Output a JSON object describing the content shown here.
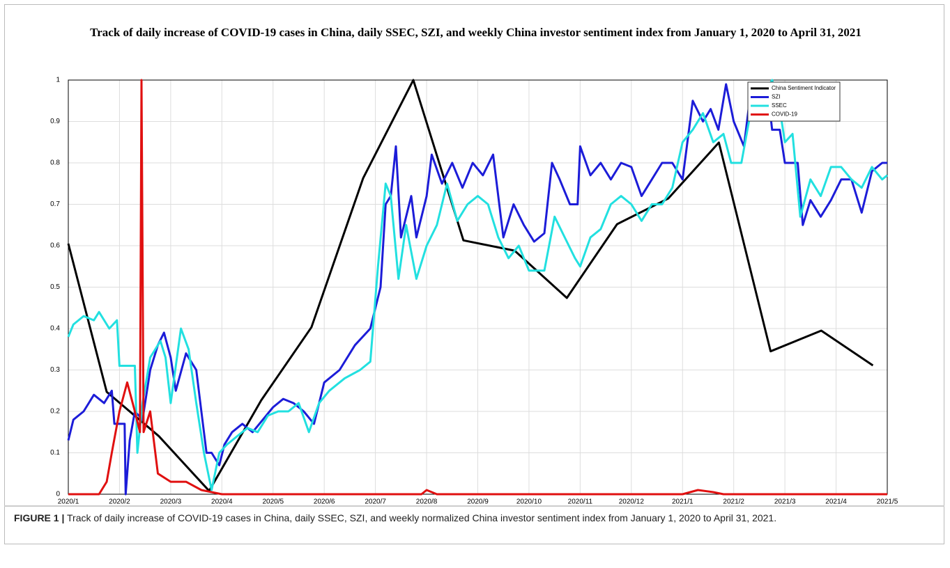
{
  "chart_data": {
    "type": "line",
    "title": "Track of daily increase of COVID-19 cases in China, daily SSEC, SZI, and weekly China investor sentiment index from January 1, 2020 to April 31, 2021",
    "caption_label": "FIGURE 1 |",
    "caption": "Track of daily increase of COVID-19 cases in China, daily SSEC, SZI, and weekly normalized China investor sentiment index from January 1, 2020 to April 31, 2021.",
    "xlim": [
      0,
      16
    ],
    "xticks": [
      {
        "value": 0,
        "label": "2020/1"
      },
      {
        "value": 1,
        "label": "2020/2"
      },
      {
        "value": 2,
        "label": "2020/3"
      },
      {
        "value": 3,
        "label": "2020/4"
      },
      {
        "value": 4,
        "label": "2020/5"
      },
      {
        "value": 5,
        "label": "2020/6"
      },
      {
        "value": 6,
        "label": "2020/7"
      },
      {
        "value": 7,
        "label": "2020/8"
      },
      {
        "value": 8,
        "label": "2020/9"
      },
      {
        "value": 9,
        "label": "2020/10"
      },
      {
        "value": 10,
        "label": "2020/11"
      },
      {
        "value": 11,
        "label": "2020/12"
      },
      {
        "value": 12,
        "label": "2021/1"
      },
      {
        "value": 13,
        "label": "2021/2"
      },
      {
        "value": 14,
        "label": "2021/3"
      },
      {
        "value": 15,
        "label": "2021/4"
      },
      {
        "value": 16,
        "label": "2021/5"
      }
    ],
    "ylim": [
      0,
      1
    ],
    "yticks": [
      0,
      0.1,
      0.2,
      0.3,
      0.4,
      0.5,
      0.6,
      0.7,
      0.8,
      0.9,
      1
    ],
    "grid": true,
    "legend": "upper right",
    "series": [
      {
        "name": "China Sentiment Indicator",
        "color": "#000000",
        "x": [
          0,
          0.75,
          1.77,
          2.75,
          3.77,
          4.75,
          5.76,
          6.74,
          7.72,
          8.72,
          9.74,
          10.72,
          11.72,
          12.71,
          13.72,
          14.71,
          15.72
        ],
        "values": [
          0.605,
          0.247,
          0.14,
          0.008,
          0.227,
          0.403,
          0.763,
          1.0,
          0.613,
          0.588,
          0.474,
          0.652,
          0.714,
          0.849,
          0.345,
          0.395,
          0.311
        ]
      },
      {
        "name": "SZI",
        "color": "#1c1cd8",
        "x": [
          0,
          0.1,
          0.3,
          0.5,
          0.7,
          0.85,
          0.9,
          1.1,
          1.12,
          1.2,
          1.3,
          1.45,
          1.6,
          1.75,
          1.87,
          2.0,
          2.1,
          2.3,
          2.5,
          2.6,
          2.7,
          2.8,
          2.95,
          3.05,
          3.2,
          3.4,
          3.6,
          3.8,
          4.0,
          4.2,
          4.4,
          4.6,
          4.8,
          5.0,
          5.3,
          5.6,
          5.9,
          6.0,
          6.1,
          6.2,
          6.3,
          6.4,
          6.5,
          6.7,
          6.8,
          7.0,
          7.1,
          7.3,
          7.5,
          7.7,
          7.9,
          8.1,
          8.3,
          8.5,
          8.7,
          8.9,
          9.1,
          9.3,
          9.45,
          9.6,
          9.8,
          9.95,
          10.0,
          10.2,
          10.4,
          10.6,
          10.8,
          11.0,
          11.2,
          11.4,
          11.6,
          11.8,
          12.0,
          12.2,
          12.4,
          12.55,
          12.7,
          12.85,
          13.0,
          13.2,
          13.35,
          13.65,
          13.75,
          13.9,
          14.0,
          14.25,
          14.35,
          14.5,
          14.7,
          14.9,
          15.1,
          15.3,
          15.5,
          15.7,
          15.9,
          16.0
        ],
        "values": [
          0.13,
          0.18,
          0.2,
          0.24,
          0.22,
          0.25,
          0.17,
          0.17,
          0.0,
          0.13,
          0.2,
          0.18,
          0.3,
          0.36,
          0.39,
          0.33,
          0.25,
          0.34,
          0.3,
          0.2,
          0.1,
          0.1,
          0.07,
          0.12,
          0.15,
          0.17,
          0.15,
          0.18,
          0.21,
          0.23,
          0.22,
          0.2,
          0.17,
          0.27,
          0.3,
          0.36,
          0.4,
          0.45,
          0.5,
          0.7,
          0.72,
          0.84,
          0.62,
          0.72,
          0.62,
          0.72,
          0.82,
          0.75,
          0.8,
          0.74,
          0.8,
          0.77,
          0.82,
          0.62,
          0.7,
          0.65,
          0.61,
          0.63,
          0.8,
          0.76,
          0.7,
          0.7,
          0.84,
          0.77,
          0.8,
          0.76,
          0.8,
          0.79,
          0.72,
          0.76,
          0.8,
          0.8,
          0.76,
          0.95,
          0.9,
          0.93,
          0.88,
          0.99,
          0.9,
          0.84,
          0.99,
          0.99,
          0.88,
          0.88,
          0.8,
          0.8,
          0.65,
          0.71,
          0.67,
          0.71,
          0.76,
          0.76,
          0.68,
          0.78,
          0.8,
          0.8
        ]
      },
      {
        "name": "SSEC",
        "color": "#22e0e0",
        "x": [
          0,
          0.1,
          0.3,
          0.5,
          0.6,
          0.8,
          0.95,
          1.0,
          1.3,
          1.35,
          1.45,
          1.6,
          1.8,
          1.9,
          2.0,
          2.2,
          2.35,
          2.5,
          2.65,
          2.8,
          2.95,
          3.1,
          3.3,
          3.5,
          3.7,
          3.9,
          4.1,
          4.3,
          4.5,
          4.7,
          4.9,
          5.1,
          5.4,
          5.7,
          5.9,
          6.05,
          6.2,
          6.3,
          6.45,
          6.6,
          6.8,
          7.0,
          7.2,
          7.4,
          7.6,
          7.8,
          8.0,
          8.2,
          8.4,
          8.6,
          8.8,
          9.0,
          9.3,
          9.5,
          9.7,
          9.9,
          10.0,
          10.2,
          10.4,
          10.6,
          10.8,
          11.0,
          11.2,
          11.4,
          11.6,
          11.8,
          12.0,
          12.2,
          12.4,
          12.6,
          12.8,
          12.95,
          13.15,
          13.4,
          13.6,
          13.75,
          13.9,
          14.0,
          14.15,
          14.3,
          14.5,
          14.7,
          14.9,
          15.1,
          15.3,
          15.5,
          15.7,
          15.9,
          16.0
        ],
        "values": [
          0.38,
          0.41,
          0.43,
          0.42,
          0.44,
          0.4,
          0.42,
          0.31,
          0.31,
          0.1,
          0.22,
          0.33,
          0.37,
          0.33,
          0.22,
          0.4,
          0.35,
          0.22,
          0.1,
          0.01,
          0.1,
          0.12,
          0.14,
          0.16,
          0.15,
          0.19,
          0.2,
          0.2,
          0.22,
          0.15,
          0.22,
          0.25,
          0.28,
          0.3,
          0.32,
          0.55,
          0.75,
          0.72,
          0.52,
          0.65,
          0.52,
          0.6,
          0.65,
          0.75,
          0.66,
          0.7,
          0.72,
          0.7,
          0.62,
          0.57,
          0.6,
          0.54,
          0.54,
          0.67,
          0.62,
          0.57,
          0.55,
          0.62,
          0.64,
          0.7,
          0.72,
          0.7,
          0.66,
          0.7,
          0.7,
          0.74,
          0.85,
          0.88,
          0.92,
          0.85,
          0.87,
          0.8,
          0.8,
          0.97,
          0.97,
          1.0,
          0.93,
          0.85,
          0.87,
          0.67,
          0.76,
          0.72,
          0.79,
          0.79,
          0.76,
          0.74,
          0.79,
          0.76,
          0.77
        ]
      },
      {
        "name": "COVID-19",
        "color": "#e01010",
        "x": [
          0,
          0.6,
          0.75,
          0.85,
          1.0,
          1.15,
          1.3,
          1.4,
          1.43,
          1.47,
          1.6,
          1.75,
          2.0,
          2.3,
          2.6,
          3.0,
          6.9,
          7.0,
          7.2,
          12.0,
          12.3,
          12.6,
          12.8,
          16.0
        ],
        "values": [
          0,
          0,
          0.03,
          0.1,
          0.2,
          0.27,
          0.2,
          0.15,
          1.0,
          0.15,
          0.2,
          0.05,
          0.03,
          0.03,
          0.01,
          0,
          0,
          0.01,
          0,
          0,
          0.01,
          0.005,
          0,
          0
        ]
      }
    ]
  }
}
